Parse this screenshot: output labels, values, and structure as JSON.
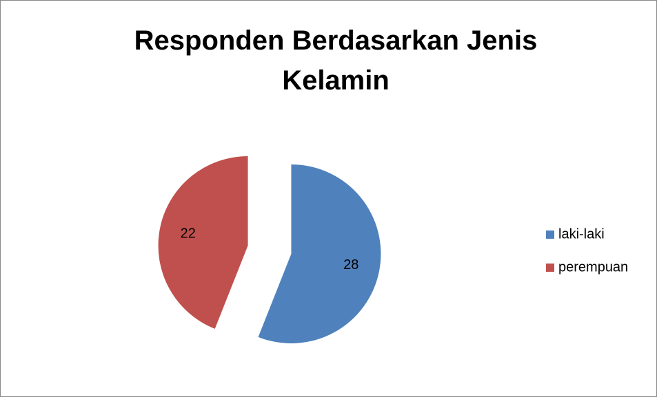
{
  "chart_data": {
    "type": "pie",
    "title": "Responden Berdasarkan Jenis Kelamin",
    "categories": [
      "laki-laki",
      "perempuan"
    ],
    "values": [
      28,
      22
    ],
    "colors": [
      "#4f81bd",
      "#c0504d"
    ],
    "exploded": true,
    "legend": "right"
  }
}
